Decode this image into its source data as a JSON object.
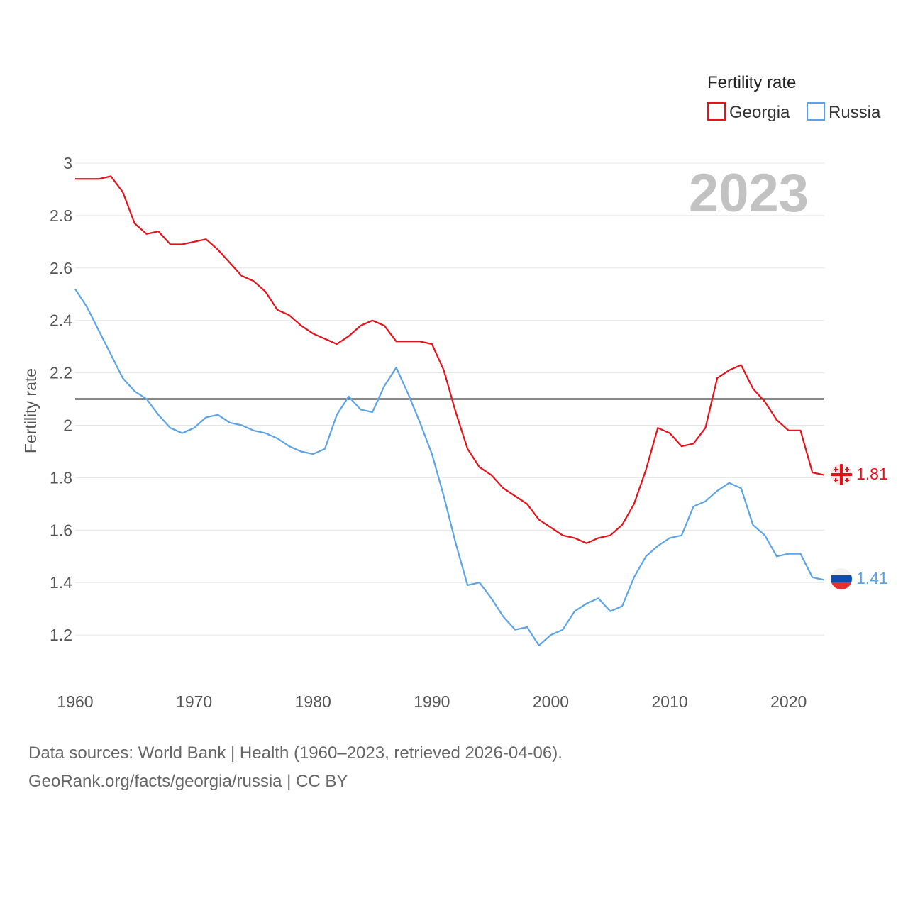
{
  "chart_data": {
    "type": "line",
    "title": "Fertility rate",
    "ylabel": "Fertility rate",
    "xlabel": "",
    "year_label": "2023",
    "xlim": [
      1960,
      2023
    ],
    "ylim": [
      1.0,
      3.0
    ],
    "x_ticks": [
      1960,
      1970,
      1980,
      1990,
      2000,
      2010,
      2020
    ],
    "y_ticks": [
      1.2,
      1.4,
      1.6,
      1.8,
      2,
      2.2,
      2.4,
      2.6,
      2.8,
      3
    ],
    "reference_line": 2.1,
    "grid": true,
    "legend_position": "top-right",
    "x": [
      1960,
      1961,
      1962,
      1963,
      1964,
      1965,
      1966,
      1967,
      1968,
      1969,
      1970,
      1971,
      1972,
      1973,
      1974,
      1975,
      1976,
      1977,
      1978,
      1979,
      1980,
      1981,
      1982,
      1983,
      1984,
      1985,
      1986,
      1987,
      1988,
      1989,
      1990,
      1991,
      1992,
      1993,
      1994,
      1995,
      1996,
      1997,
      1998,
      1999,
      2000,
      2001,
      2002,
      2003,
      2004,
      2005,
      2006,
      2007,
      2008,
      2009,
      2010,
      2011,
      2012,
      2013,
      2014,
      2015,
      2016,
      2017,
      2018,
      2019,
      2020,
      2021,
      2022,
      2023
    ],
    "series": [
      {
        "name": "Georgia",
        "color": "#e8111a",
        "end_label": "1.81",
        "values": [
          2.94,
          2.94,
          2.94,
          2.95,
          2.89,
          2.77,
          2.73,
          2.74,
          2.69,
          2.69,
          2.7,
          2.71,
          2.67,
          2.62,
          2.57,
          2.55,
          2.51,
          2.44,
          2.42,
          2.38,
          2.35,
          2.33,
          2.31,
          2.34,
          2.38,
          2.4,
          2.38,
          2.32,
          2.32,
          2.32,
          2.31,
          2.21,
          2.05,
          1.91,
          1.84,
          1.81,
          1.76,
          1.73,
          1.7,
          1.64,
          1.61,
          1.58,
          1.57,
          1.55,
          1.57,
          1.58,
          1.62,
          1.7,
          1.83,
          1.99,
          1.97,
          1.92,
          1.93,
          1.99,
          2.18,
          2.21,
          2.23,
          2.14,
          2.09,
          2.02,
          1.98,
          1.98,
          1.82,
          1.81
        ]
      },
      {
        "name": "Russia",
        "color": "#5ca3e6",
        "end_label": "1.41",
        "values": [
          2.52,
          2.45,
          2.36,
          2.27,
          2.18,
          2.13,
          2.1,
          2.04,
          1.99,
          1.97,
          1.99,
          2.03,
          2.04,
          2.01,
          2.0,
          1.98,
          1.97,
          1.95,
          1.92,
          1.9,
          1.89,
          1.91,
          2.04,
          2.11,
          2.06,
          2.05,
          2.15,
          2.22,
          2.12,
          2.01,
          1.89,
          1.73,
          1.55,
          1.39,
          1.4,
          1.34,
          1.27,
          1.22,
          1.23,
          1.16,
          1.2,
          1.22,
          1.29,
          1.32,
          1.34,
          1.29,
          1.31,
          1.42,
          1.5,
          1.54,
          1.57,
          1.58,
          1.69,
          1.71,
          1.75,
          1.78,
          1.76,
          1.62,
          1.58,
          1.5,
          1.51,
          1.51,
          1.42,
          1.41
        ]
      }
    ]
  },
  "source": {
    "line1": "Data sources: World Bank | Health (1960–2023, retrieved 2026-04-06).",
    "line2": "GeoRank.org/facts/georgia/russia | CC BY"
  },
  "colors": {
    "grid": "#e6e6e6",
    "reference_line": "#111111",
    "year_watermark": "#c2c2c2",
    "tick_text": "#555555",
    "russia_flag_top": "#f2f2f2",
    "russia_flag_mid": "#0a4fb0",
    "russia_flag_bottom": "#e63030"
  }
}
